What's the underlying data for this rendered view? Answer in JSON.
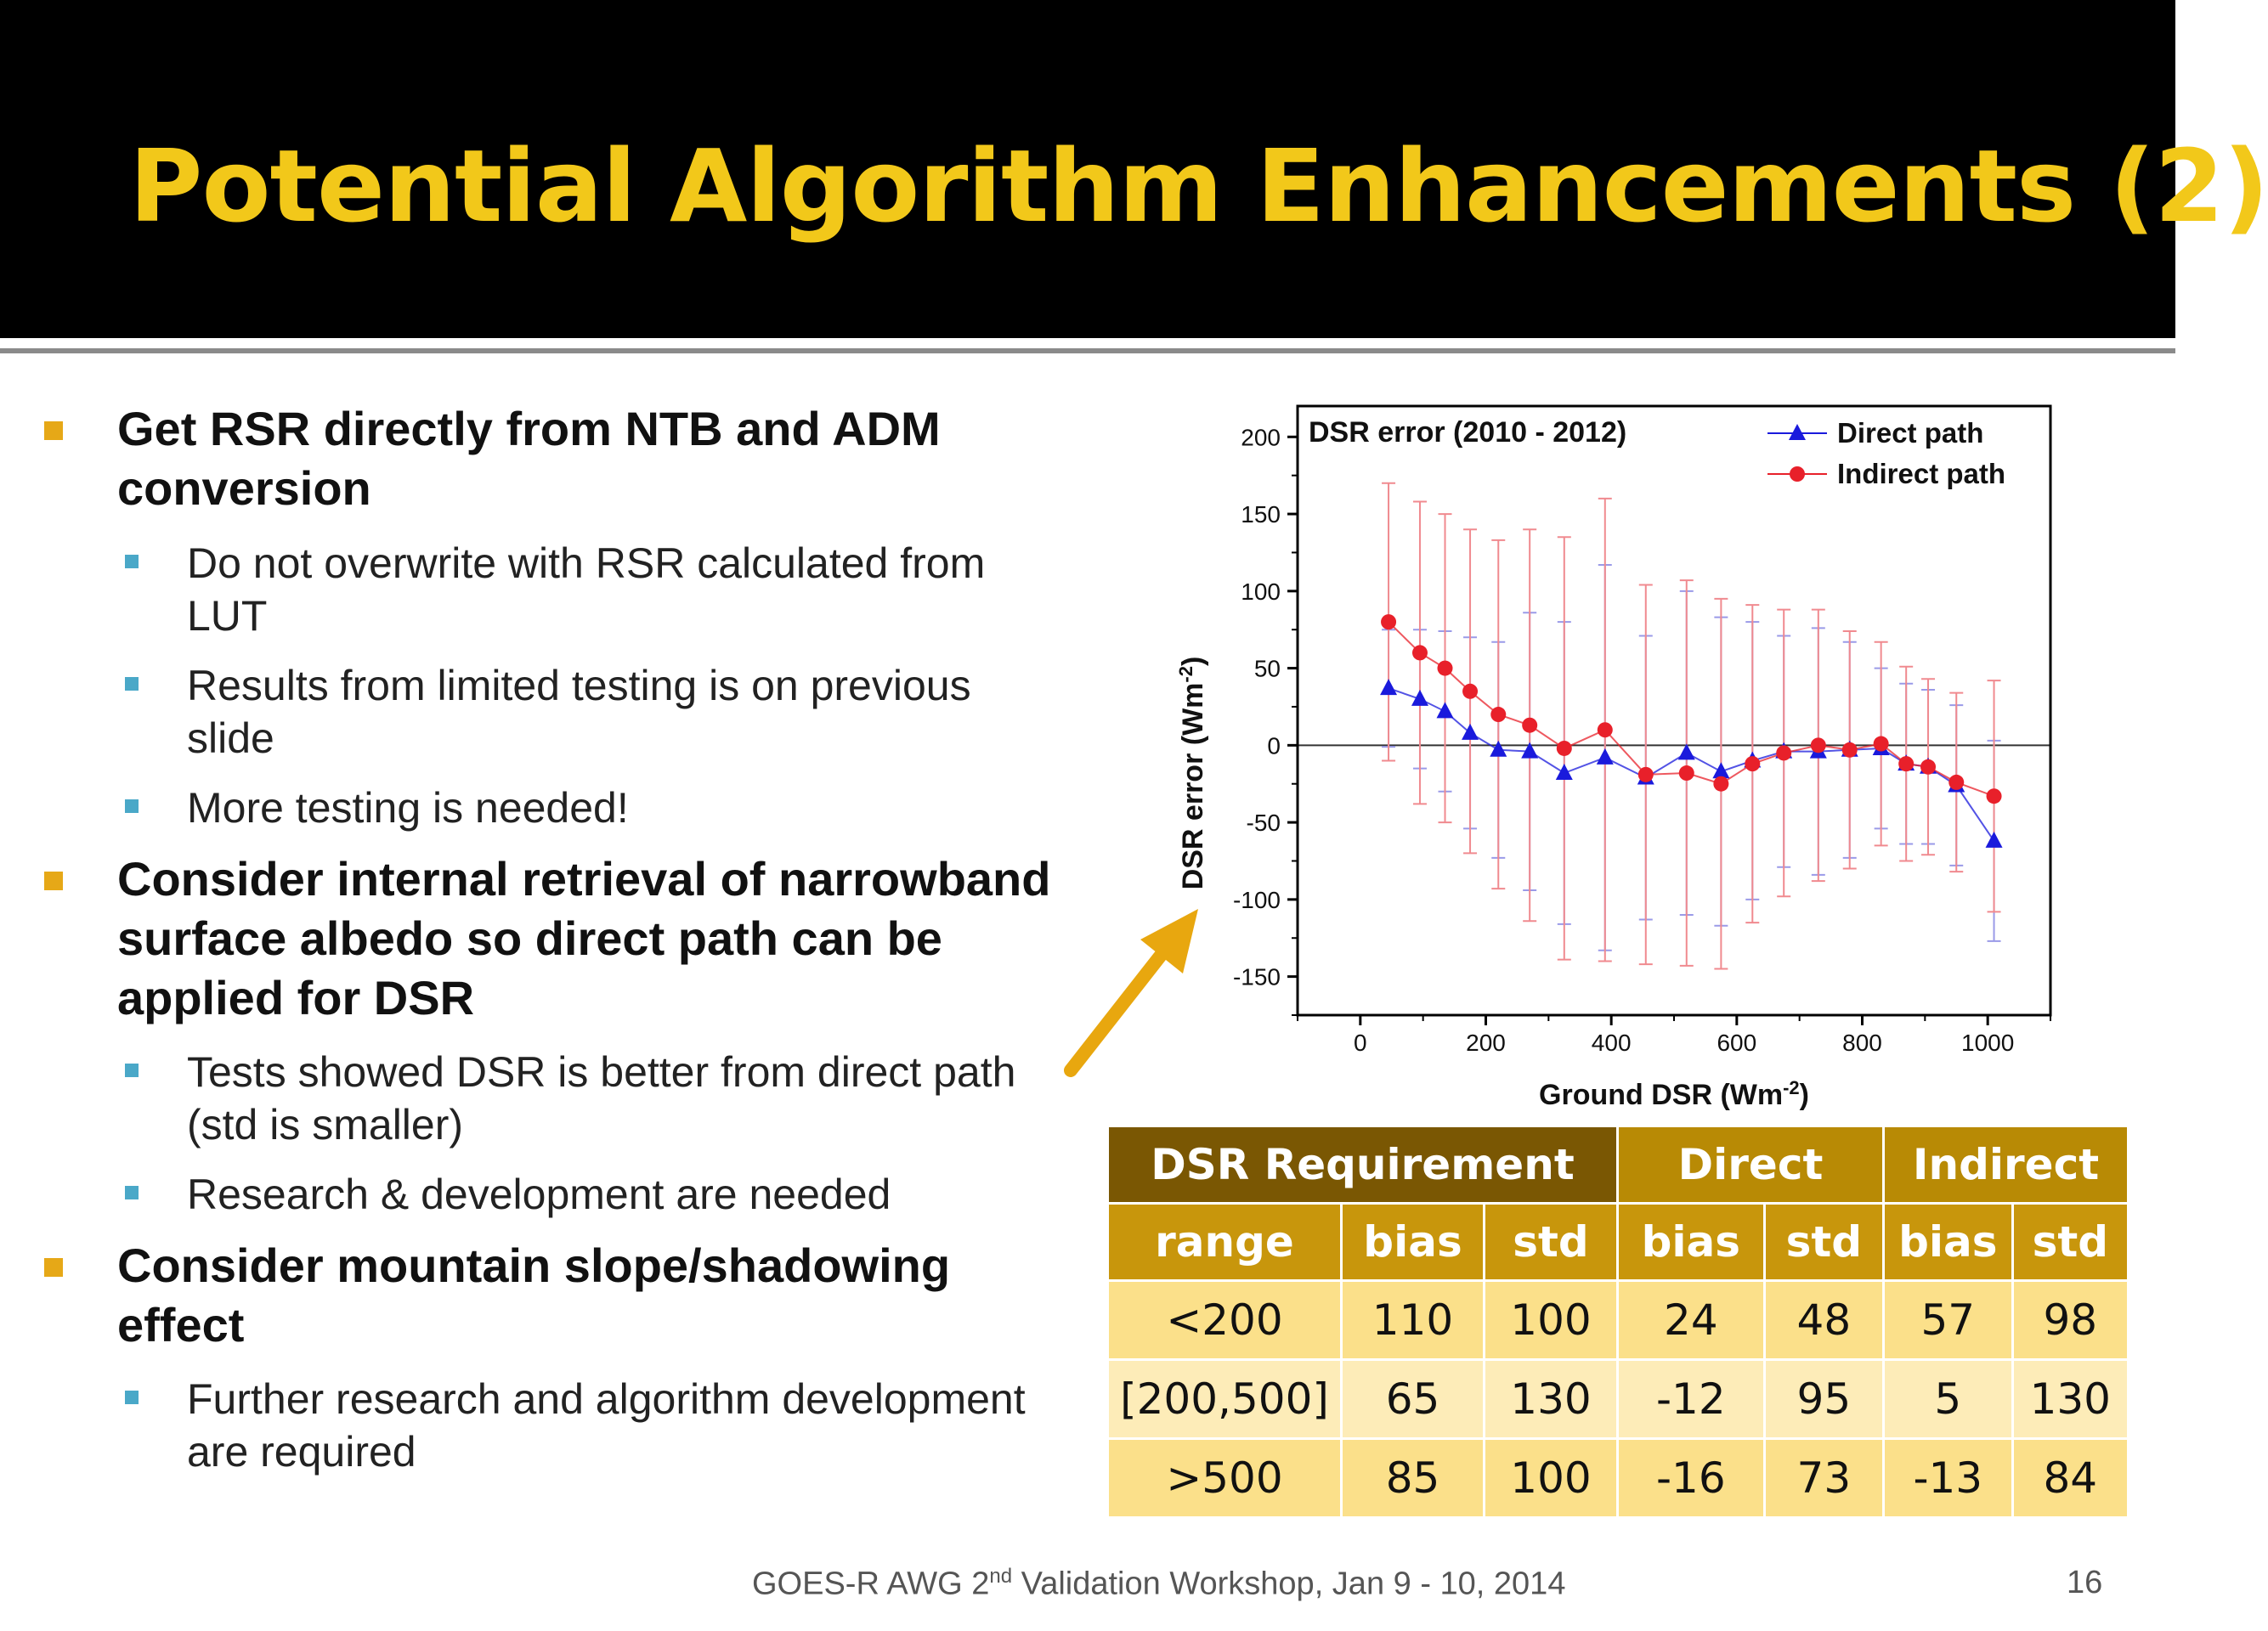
{
  "slide": {
    "title": "Potential Algorithm Enhancements (2)",
    "footer_pre": "GOES-R AWG 2",
    "footer_sup": "nd",
    "footer_post": " Validation Workshop, Jan 9 - 10, 2014",
    "page_number": "16",
    "colors": {
      "title": "#f2c81a",
      "bullet_primary": "#e6a817",
      "bullet_secondary": "#4aa8c8",
      "arrow": "#e8a70f"
    }
  },
  "bullets": [
    {
      "lines": [
        "Get RSR directly from NTB and ADM",
        "conversion"
      ],
      "sub": [
        {
          "lines": [
            "Do not overwrite with RSR calculated from",
            "LUT"
          ]
        },
        {
          "lines": [
            "Results from limited testing is on previous",
            "slide"
          ]
        },
        {
          "lines": [
            "More testing is needed!"
          ]
        }
      ]
    },
    {
      "lines": [
        "Consider internal retrieval of narrowband",
        "surface albedo so direct path can be",
        "applied for DSR"
      ],
      "sub": [
        {
          "lines": [
            "Tests showed DSR is better from direct path",
            "(std is smaller)"
          ]
        },
        {
          "lines": [
            "Research & development are needed"
          ]
        }
      ]
    },
    {
      "lines": [
        "Consider mountain slope/shadowing",
        "effect"
      ],
      "sub": [
        {
          "lines": [
            "Further research and algorithm development",
            "are required"
          ]
        }
      ]
    }
  ],
  "chart_data": {
    "type": "line",
    "title": "DSR error (2010 - 2012)",
    "xlabel": "Ground DSR (Wm",
    "xlabel_sup": "-2",
    "xlabel_end": ")",
    "ylabel": "DSR error (Wm",
    "ylabel_sup": "-2",
    "ylabel_end": ")",
    "xlim": [
      -100,
      1100
    ],
    "ylim": [
      -175,
      220
    ],
    "xticks": [
      0,
      200,
      400,
      600,
      800,
      1000
    ],
    "yticks": [
      200,
      150,
      100,
      50,
      0,
      -50,
      -100,
      -150
    ],
    "legend_position": "top-right",
    "series": [
      {
        "name": "Direct path",
        "color": "#1a1adc",
        "marker": "triangle",
        "x": [
          45,
          95,
          135,
          175,
          220,
          270,
          325,
          390,
          455,
          520,
          575,
          625,
          675,
          730,
          780,
          830,
          870,
          905,
          950,
          1010
        ],
        "y": [
          37,
          30,
          22,
          8,
          -3,
          -4,
          -18,
          -8,
          -21,
          -5,
          -17,
          -10,
          -4,
          -4,
          -3,
          -2,
          -12,
          -14,
          -26,
          -62
        ],
        "err": [
          38,
          45,
          52,
          62,
          70,
          90,
          98,
          125,
          92,
          105,
          100,
          90,
          75,
          80,
          70,
          52,
          52,
          50,
          52,
          65
        ]
      },
      {
        "name": "Indirect path",
        "color": "#e8202a",
        "marker": "circle",
        "x": [
          45,
          95,
          135,
          175,
          220,
          270,
          325,
          390,
          455,
          520,
          575,
          625,
          675,
          730,
          780,
          830,
          870,
          905,
          950,
          1010
        ],
        "y": [
          80,
          60,
          50,
          35,
          20,
          13,
          -2,
          10,
          -19,
          -18,
          -25,
          -12,
          -5,
          0,
          -3,
          1,
          -12,
          -14,
          -24,
          -33
        ],
        "err": [
          90,
          98,
          100,
          105,
          113,
          127,
          137,
          150,
          123,
          125,
          120,
          103,
          93,
          88,
          77,
          66,
          63,
          57,
          58,
          75
        ]
      }
    ]
  },
  "table": {
    "group_headers": [
      "DSR Requirement",
      "Direct",
      "Indirect"
    ],
    "sub_headers": [
      "range",
      "bias",
      "std",
      "bias",
      "std",
      "bias",
      "std"
    ],
    "rows": [
      [
        "<200",
        "110",
        "100",
        "24",
        "48",
        "57",
        "98"
      ],
      [
        "[200,500]",
        "65",
        "130",
        "-12",
        "95",
        "5",
        "130"
      ],
      [
        ">500",
        "85",
        "100",
        "-16",
        "73",
        "-13",
        "84"
      ]
    ]
  }
}
